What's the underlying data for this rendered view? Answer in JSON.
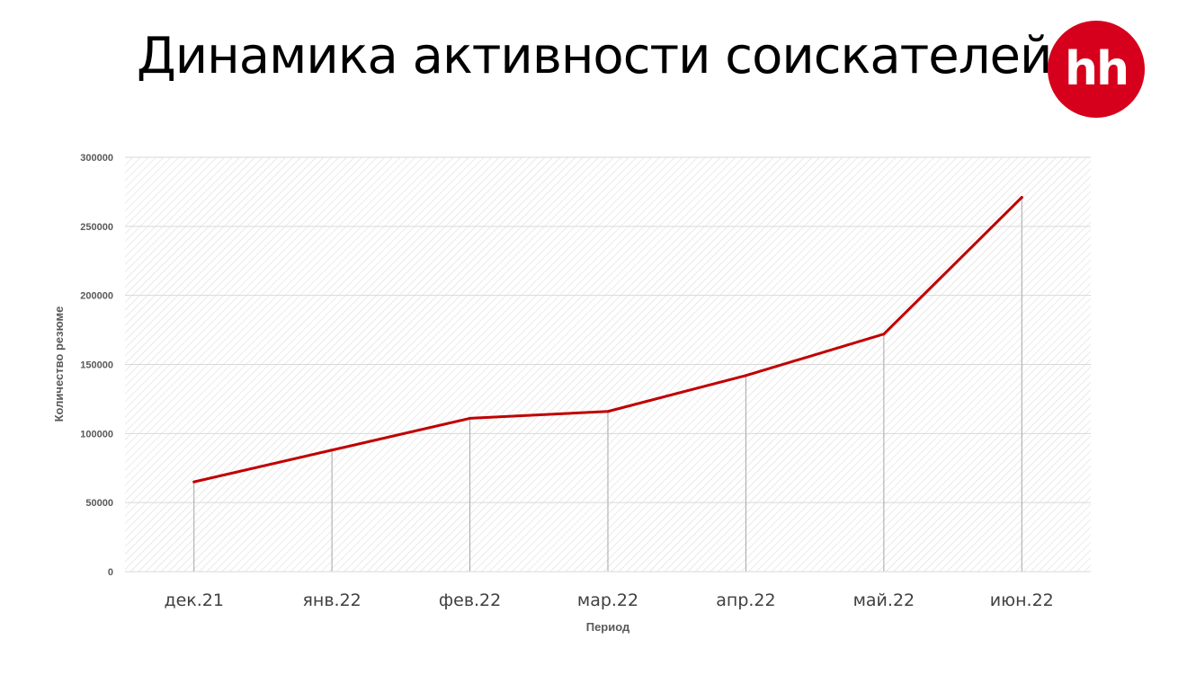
{
  "header": {
    "title": "Динамика активности соискателей",
    "logo_text": "hh"
  },
  "colors": {
    "line": "#c00000",
    "brand": "#d6001c",
    "gridline": "#d9d9d9",
    "drop_line": "#a6a6a6"
  },
  "chart_data": {
    "type": "line",
    "title": "",
    "xlabel": "Период",
    "ylabel": "Количество резюме",
    "categories": [
      "дек.21",
      "янв.22",
      "фев.22",
      "мар.22",
      "апр.22",
      "май.22",
      "июн.22"
    ],
    "series": [
      {
        "values": [
          65000,
          88000,
          111000,
          116000,
          142000,
          172000,
          271000
        ]
      }
    ],
    "ylim": [
      0,
      300000
    ],
    "yticks": [
      0,
      50000,
      100000,
      150000,
      200000,
      250000,
      300000
    ],
    "grid": true,
    "drop_lines": true,
    "legend": "none"
  }
}
